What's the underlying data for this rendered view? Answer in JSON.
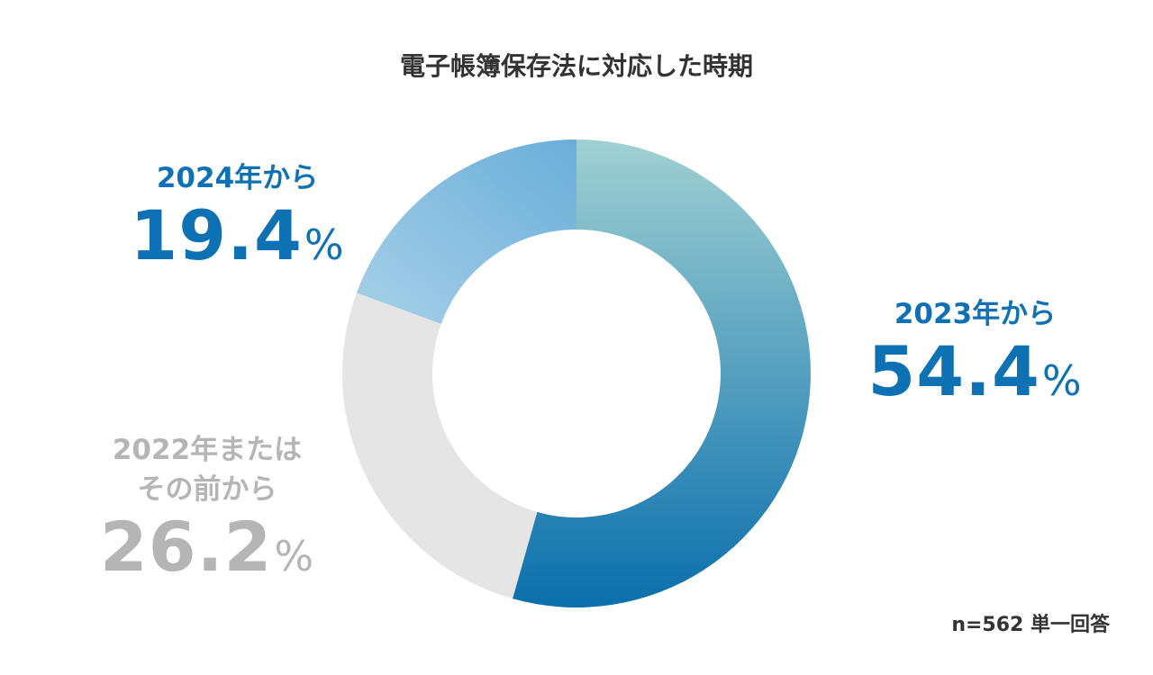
{
  "chart_data": {
    "type": "pie",
    "donut": true,
    "title": "電子帳簿保存法に対応した時期",
    "slices": [
      {
        "label": "2023年から",
        "value": 54.4,
        "display": "54.4",
        "unit": "%",
        "color_start": "#a0d0d2",
        "color_end": "#0a6fac"
      },
      {
        "label_lines": [
          "2022年または",
          "その前から"
        ],
        "value": 26.2,
        "display": "26.2",
        "unit": "%",
        "color": "#e5e5e5"
      },
      {
        "label": "2024年から",
        "value": 19.4,
        "display": "19.4",
        "unit": "%",
        "color_start": "#a8d0e8",
        "color_end": "#6aaed9"
      }
    ],
    "start_angle_deg": 0,
    "direction": "clockwise",
    "note": "n=562 単一回答"
  },
  "colors": {
    "label_blue": "#0d71b4",
    "label_gray": "#b5b5b5",
    "title_text": "#333333"
  }
}
